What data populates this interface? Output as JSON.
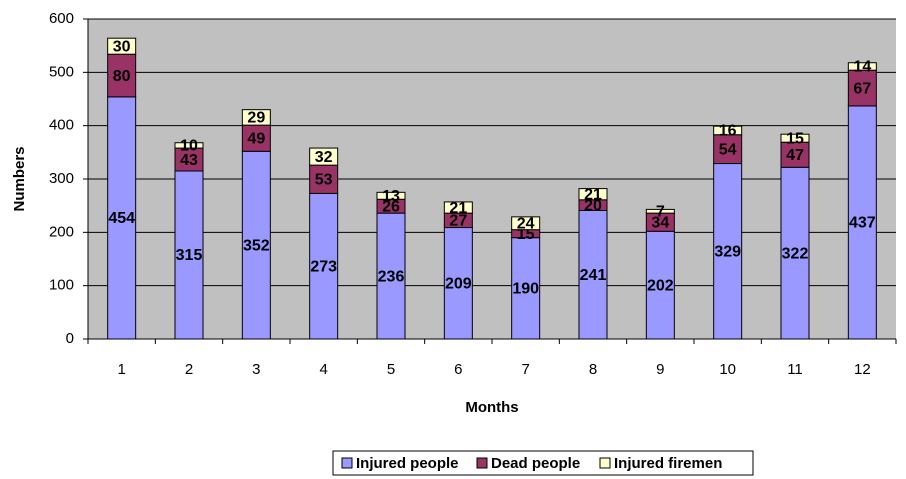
{
  "chart_data": {
    "type": "bar",
    "stacked": true,
    "x_label": "Months",
    "y_label": "Numbers",
    "categories": [
      "1",
      "2",
      "3",
      "4",
      "5",
      "6",
      "7",
      "8",
      "9",
      "10",
      "11",
      "12"
    ],
    "series": [
      {
        "name": "Injured people",
        "color": "#9999ff",
        "values": [
          454,
          315,
          352,
          273,
          236,
          209,
          190,
          241,
          202,
          329,
          322,
          437
        ]
      },
      {
        "name": "Dead people",
        "color": "#993366",
        "values": [
          80,
          43,
          49,
          53,
          26,
          27,
          15,
          20,
          34,
          54,
          47,
          67
        ]
      },
      {
        "name": "Injured firemen",
        "color": "#ffffcc",
        "values": [
          30,
          10,
          29,
          32,
          13,
          21,
          24,
          21,
          7,
          16,
          15,
          14
        ]
      }
    ],
    "ylim": [
      0,
      600
    ],
    "yticks": [
      0,
      100,
      200,
      300,
      400,
      500,
      600
    ],
    "grid": true,
    "legend": "bottom"
  }
}
